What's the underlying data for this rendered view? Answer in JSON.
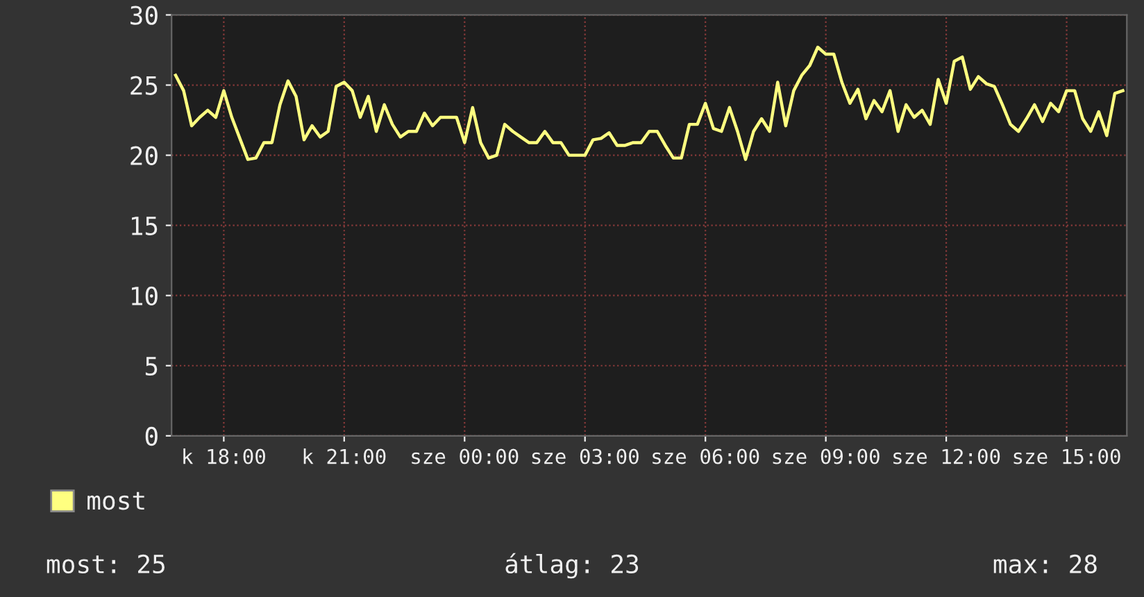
{
  "chart_data": {
    "type": "line",
    "legend": "bottom left",
    "grid": true,
    "line_style": "solid",
    "ylim": [
      0,
      30
    ],
    "yticks": [
      0,
      5,
      10,
      15,
      20,
      25,
      30
    ],
    "annotations": [
      "most: 25",
      "átlag: 23",
      "max: 28"
    ],
    "categories": [
      null,
      null,
      null,
      null,
      null,
      null,
      "k 18:00",
      null,
      null,
      null,
      null,
      null,
      null,
      null,
      null,
      null,
      null,
      null,
      null,
      null,
      null,
      "k 21:00",
      null,
      null,
      null,
      null,
      null,
      null,
      null,
      null,
      null,
      null,
      null,
      null,
      null,
      null,
      "sze 00:00",
      null,
      null,
      null,
      null,
      null,
      null,
      null,
      null,
      null,
      null,
      null,
      null,
      null,
      null,
      "sze 03:00",
      null,
      null,
      null,
      null,
      null,
      null,
      null,
      null,
      null,
      null,
      null,
      null,
      null,
      null,
      "sze 06:00",
      null,
      null,
      null,
      null,
      null,
      null,
      null,
      null,
      null,
      null,
      null,
      null,
      null,
      null,
      "sze 09:00",
      null,
      null,
      null,
      null,
      null,
      null,
      null,
      null,
      null,
      null,
      null,
      null,
      null,
      null,
      "sze 12:00",
      null,
      null,
      null,
      null,
      null,
      null,
      null,
      null,
      null,
      null,
      null,
      null,
      null,
      null,
      "sze 15:00",
      null,
      null,
      null,
      null,
      null,
      null,
      null
    ],
    "series": [
      {
        "name": "most",
        "color": "#ffff80",
        "values": [
          25.7,
          24.6,
          22.1,
          22.7,
          23.2,
          22.7,
          24.6,
          22.7,
          21.2,
          19.7,
          19.8,
          20.9,
          20.9,
          23.6,
          25.3,
          24.2,
          21.1,
          22.1,
          21.3,
          21.7,
          24.9,
          25.2,
          24.6,
          22.7,
          24.2,
          21.7,
          23.6,
          22.2,
          21.3,
          21.7,
          21.7,
          23.0,
          22.1,
          22.7,
          22.7,
          22.7,
          20.9,
          23.4,
          20.9,
          19.8,
          20.0,
          22.2,
          21.7,
          21.3,
          20.9,
          20.9,
          21.7,
          20.9,
          20.9,
          20.0,
          20.0,
          20.0,
          21.1,
          21.2,
          21.6,
          20.7,
          20.7,
          20.9,
          20.9,
          21.7,
          21.7,
          20.7,
          19.8,
          19.8,
          22.2,
          22.2,
          23.7,
          21.9,
          21.7,
          23.4,
          21.7,
          19.7,
          21.7,
          22.6,
          21.7,
          25.2,
          22.1,
          24.6,
          25.7,
          26.4,
          27.7,
          27.2,
          27.2,
          25.2,
          23.7,
          24.7,
          22.6,
          23.9,
          23.1,
          24.6,
          21.7,
          23.6,
          22.7,
          23.2,
          22.2,
          25.4,
          23.7,
          26.7,
          27.0,
          24.7,
          25.6,
          25.1,
          24.9,
          23.6,
          22.2,
          21.7,
          22.6,
          23.6,
          22.4,
          23.7,
          23.1,
          24.6,
          24.6,
          22.6,
          21.7,
          23.1,
          21.4,
          24.4,
          24.6
        ]
      }
    ]
  }
}
